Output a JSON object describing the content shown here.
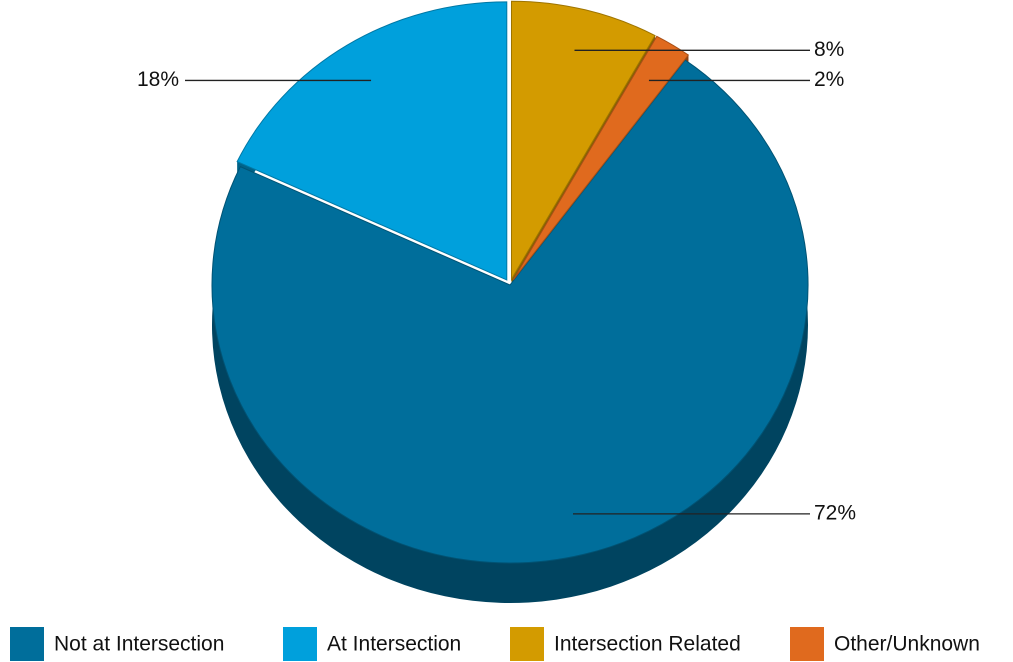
{
  "chart_data": {
    "type": "pie",
    "categories": [
      "Not at Intersection",
      "At Intersection",
      "Intersection Related",
      "Other/Unknown"
    ],
    "values": [
      72,
      18,
      8,
      2
    ],
    "value_labels": [
      "72%",
      "18%",
      "8%",
      "2%"
    ],
    "colors": [
      "#006e9b",
      "#00a0dc",
      "#d39b00",
      "#e06a1e"
    ],
    "legend": "bottom"
  }
}
